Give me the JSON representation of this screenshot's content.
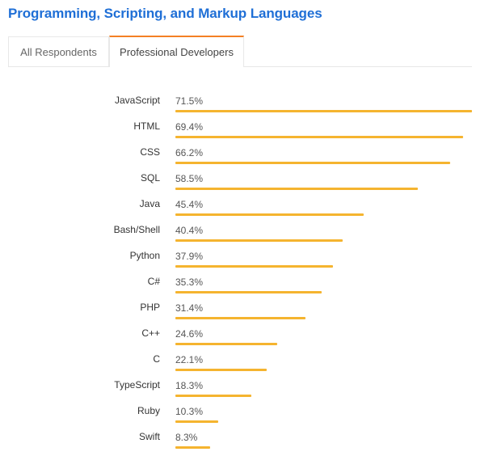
{
  "header": {
    "title": "Programming, Scripting, and Markup Languages"
  },
  "tabs": [
    {
      "label": "All Respondents",
      "active": false
    },
    {
      "label": "Professional Developers",
      "active": true
    }
  ],
  "colors": {
    "title": "#1f6fd6",
    "bar": "#f5b42f",
    "active_tab_border": "#f48024"
  },
  "chart_data": {
    "type": "bar",
    "orientation": "horizontal",
    "title": "Programming, Scripting, and Markup Languages",
    "subtitle": "Professional Developers",
    "xlabel": "",
    "ylabel": "",
    "categories": [
      "JavaScript",
      "HTML",
      "CSS",
      "SQL",
      "Java",
      "Bash/Shell",
      "Python",
      "C#",
      "PHP",
      "C++",
      "C",
      "TypeScript",
      "Ruby",
      "Swift"
    ],
    "values": [
      71.5,
      69.4,
      66.2,
      58.5,
      45.4,
      40.4,
      37.9,
      35.3,
      31.4,
      24.6,
      22.1,
      18.3,
      10.3,
      8.3
    ],
    "value_labels": [
      "71.5%",
      "69.4%",
      "66.2%",
      "58.5%",
      "45.4%",
      "40.4%",
      "37.9%",
      "35.3%",
      "31.4%",
      "24.6%",
      "22.1%",
      "18.3%",
      "10.3%",
      "8.3%"
    ],
    "unit": "%",
    "grid": false,
    "legend": null,
    "xlim": [
      0,
      71.5
    ]
  }
}
